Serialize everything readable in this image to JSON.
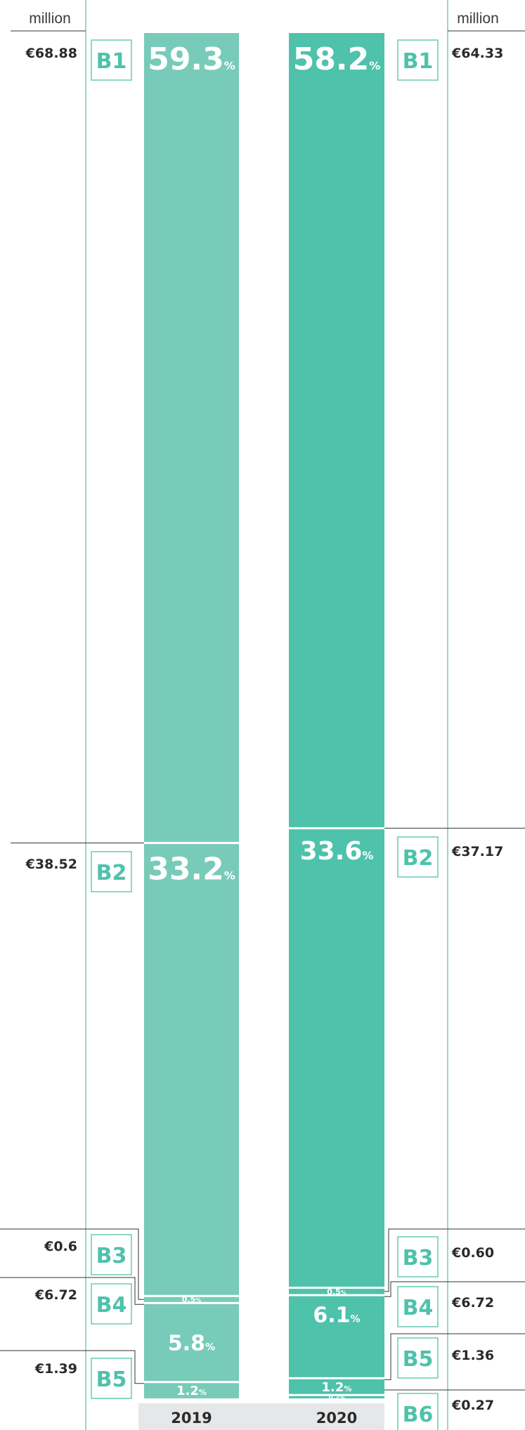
{
  "colors": {
    "bar_2019": "#78cbb9",
    "bar_2020": "#4ec2ab",
    "badge": "#4ec2ab",
    "axis_line": "#4ec2ab",
    "rule": "#333333",
    "year_band": "#e6e7e8"
  },
  "labels": {
    "unit_left": "million",
    "unit_right": "million"
  },
  "chart_data": {
    "type": "bar",
    "stacked": true,
    "orientation": "vertical",
    "unit": "million €",
    "categories": [
      "2019",
      "2020"
    ],
    "segments": [
      {
        "id": "B1",
        "values": [
          68.88,
          64.33
        ],
        "value_labels": [
          "€68.88",
          "€64.33"
        ],
        "percents": [
          "59.3",
          "58.2"
        ]
      },
      {
        "id": "B2",
        "values": [
          38.52,
          37.17
        ],
        "value_labels": [
          "€38.52",
          "€37.17"
        ],
        "percents": [
          "33.2",
          "33.6"
        ]
      },
      {
        "id": "B3",
        "values": [
          0.6,
          0.6
        ],
        "value_labels": [
          "€0.6",
          "€0.60"
        ],
        "percents": [
          "0.5",
          "0.5"
        ]
      },
      {
        "id": "B4",
        "values": [
          6.72,
          6.72
        ],
        "value_labels": [
          "€6.72",
          "€6.72"
        ],
        "percents": [
          "5.8",
          "6.1"
        ]
      },
      {
        "id": "B5",
        "values": [
          1.39,
          1.36
        ],
        "value_labels": [
          "€1.39",
          "€1.36"
        ],
        "percents": [
          "1.2",
          "1.2"
        ]
      },
      {
        "id": "B6",
        "values": [
          0,
          0.27
        ],
        "value_labels": [
          null,
          "€0.27"
        ],
        "percents": [
          null,
          "0.2"
        ]
      }
    ],
    "percent_symbol": "%"
  }
}
